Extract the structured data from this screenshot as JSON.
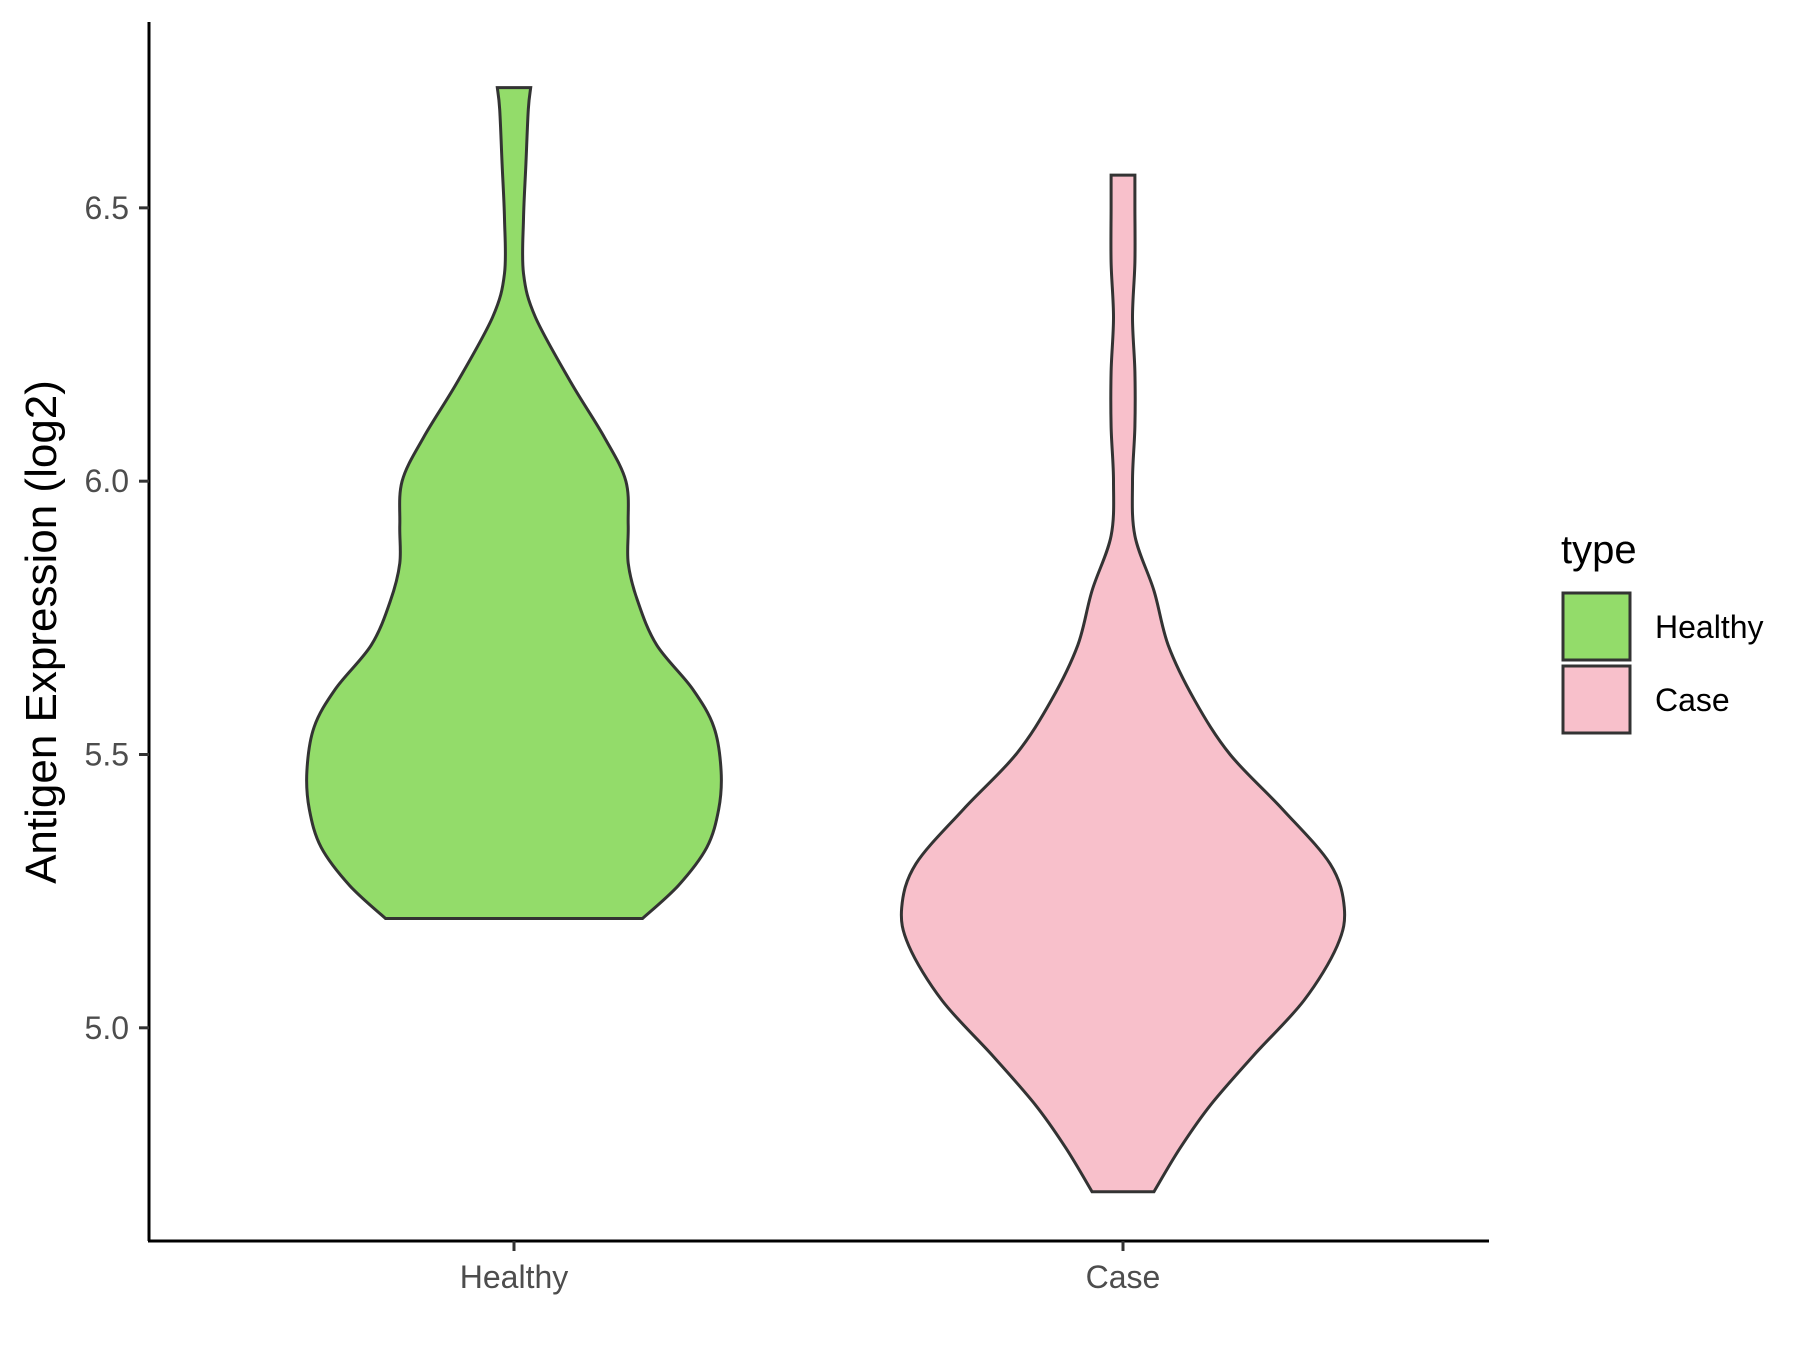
{
  "chart_data": {
    "type": "violin",
    "categories": [
      "Healthy",
      "Case"
    ],
    "ylabel": "Antigen Expression (log2)",
    "xlabel": "",
    "ylim": [
      4.61,
      6.84
    ],
    "yticks": [
      5.0,
      5.5,
      6.0,
      6.5
    ],
    "ytick_labels": [
      "5.0",
      "5.5",
      "6.0",
      "6.5"
    ],
    "grid": false,
    "legend": {
      "title": "type",
      "position": "right",
      "entries": [
        {
          "label": "Healthy",
          "color": "#93DC6A"
        },
        {
          "label": "Case",
          "color": "#F8C0CB"
        }
      ]
    },
    "series": [
      {
        "name": "Healthy",
        "color": "#93DC6A",
        "min": 5.2,
        "max": 6.72,
        "density_profile": [
          [
            5.2,
            0.54
          ],
          [
            5.26,
            0.69
          ],
          [
            5.33,
            0.81
          ],
          [
            5.4,
            0.86
          ],
          [
            5.47,
            0.87
          ],
          [
            5.55,
            0.84
          ],
          [
            5.62,
            0.75
          ],
          [
            5.7,
            0.6
          ],
          [
            5.78,
            0.52
          ],
          [
            5.85,
            0.48
          ],
          [
            5.92,
            0.48
          ],
          [
            6.0,
            0.47
          ],
          [
            6.08,
            0.38
          ],
          [
            6.18,
            0.24
          ],
          [
            6.3,
            0.09
          ],
          [
            6.38,
            0.04
          ],
          [
            6.48,
            0.04
          ],
          [
            6.58,
            0.05
          ],
          [
            6.68,
            0.06
          ],
          [
            6.72,
            0.07
          ]
        ]
      },
      {
        "name": "Case",
        "color": "#F8C0CB",
        "min": 4.7,
        "max": 6.56,
        "density_profile": [
          [
            4.7,
            0.13
          ],
          [
            4.78,
            0.24
          ],
          [
            4.86,
            0.37
          ],
          [
            4.95,
            0.55
          ],
          [
            5.05,
            0.76
          ],
          [
            5.15,
            0.9
          ],
          [
            5.22,
            0.93
          ],
          [
            5.3,
            0.87
          ],
          [
            5.4,
            0.67
          ],
          [
            5.5,
            0.45
          ],
          [
            5.6,
            0.3
          ],
          [
            5.7,
            0.19
          ],
          [
            5.8,
            0.13
          ],
          [
            5.9,
            0.05
          ],
          [
            6.0,
            0.04
          ],
          [
            6.1,
            0.05
          ],
          [
            6.2,
            0.05
          ],
          [
            6.3,
            0.04
          ],
          [
            6.4,
            0.05
          ],
          [
            6.5,
            0.05
          ],
          [
            6.56,
            0.05
          ]
        ]
      }
    ]
  }
}
